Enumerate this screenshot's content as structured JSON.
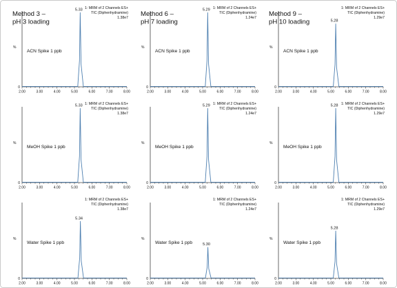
{
  "chart_data": [
    {
      "type": "line",
      "title": "Method 3 –\npH 3 loading",
      "annotation": "ACN Spike 1 ppb",
      "header": [
        "1: MRM of 2 Channels ES+",
        "TIC (Diphenhydramine)",
        "1.38e7"
      ],
      "ylabel": "%",
      "xlim": [
        2.0,
        8.0
      ],
      "ylim": [
        0,
        100
      ],
      "xticks": [
        "2.00",
        "3.00",
        "4.00",
        "5.00",
        "6.00",
        "7.00",
        "8.00"
      ],
      "peaks": [
        {
          "x": 5.33,
          "height": 100,
          "label": "5.33"
        }
      ]
    },
    {
      "type": "line",
      "title": "Method 6 –\npH 7 loading",
      "annotation": "ACN Spike 1 ppb",
      "header": [
        "1: MRM of 2 Channels ES+",
        "TIC (Diphenhydramine)",
        "1.24e7"
      ],
      "ylabel": "%",
      "xlim": [
        2.0,
        8.0
      ],
      "ylim": [
        0,
        100
      ],
      "xticks": [
        "2.00",
        "3.00",
        "4.00",
        "5.00",
        "6.00",
        "7.00",
        "8.00"
      ],
      "peaks": [
        {
          "x": 5.29,
          "height": 100,
          "label": "5.29"
        }
      ]
    },
    {
      "type": "line",
      "title": "Method 9 –\npH 10 loading",
      "annotation": "ACN Spike 1 ppb",
      "header": [
        "1: MRM of 2 Channels ES+",
        "TIC (Diphenhydramine)",
        "1.29e7"
      ],
      "ylabel": "%",
      "xlim": [
        2.0,
        8.0
      ],
      "ylim": [
        0,
        100
      ],
      "xticks": [
        "2.00",
        "3.00",
        "4.00",
        "5.00",
        "6.00",
        "7.00",
        "8.00"
      ],
      "peaks": [
        {
          "x": 5.28,
          "height": 85,
          "label": "5.28"
        }
      ]
    },
    {
      "type": "line",
      "title": "",
      "annotation": "MeOH Spike 1 ppb",
      "header": [
        "1: MRM of 2 Channels ES+",
        "TIC (Diphenhydramine)",
        "1.38e7"
      ],
      "ylabel": "%",
      "xlim": [
        2.0,
        8.0
      ],
      "ylim": [
        0,
        100
      ],
      "xticks": [
        "2.00",
        "3.00",
        "4.00",
        "5.00",
        "6.00",
        "7.00",
        "8.00"
      ],
      "peaks": [
        {
          "x": 5.33,
          "height": 100,
          "label": "5.33"
        }
      ]
    },
    {
      "type": "line",
      "title": "",
      "annotation": "MeOH Spike 1 ppb",
      "header": [
        "1: MRM of 2 Channels ES+",
        "TIC (Diphenhydramine)",
        "1.24e7"
      ],
      "ylabel": "%",
      "xlim": [
        2.0,
        8.0
      ],
      "ylim": [
        0,
        100
      ],
      "xticks": [
        "2.00",
        "3.00",
        "4.00",
        "5.00",
        "6.00",
        "7.00",
        "8.00"
      ],
      "peaks": [
        {
          "x": 5.29,
          "height": 100,
          "label": "5.29"
        }
      ]
    },
    {
      "type": "line",
      "title": "",
      "annotation": "MeOH Spike 1 ppb",
      "header": [
        "1: MRM of 2 Channels ES+",
        "TIC (Diphenhydramine)",
        "1.29e7"
      ],
      "ylabel": "%",
      "xlim": [
        2.0,
        8.0
      ],
      "ylim": [
        0,
        100
      ],
      "xticks": [
        "2.00",
        "3.00",
        "4.00",
        "5.00",
        "6.00",
        "7.00",
        "8.00"
      ],
      "peaks": [
        {
          "x": 5.28,
          "height": 100,
          "label": "5.28"
        }
      ]
    },
    {
      "type": "line",
      "title": "",
      "annotation": "Water Spike 1 ppb",
      "header": [
        "1: MRM of 2 Channels ES+",
        "TIC (Diphenhydramine)",
        "1.38e7"
      ],
      "ylabel": "%",
      "xlim": [
        2.0,
        8.0
      ],
      "ylim": [
        0,
        100
      ],
      "xticks": [
        "2.00",
        "3.00",
        "4.00",
        "5.00",
        "6.00",
        "7.00",
        "8.00"
      ],
      "peaks": [
        {
          "x": 5.34,
          "height": 77,
          "label": "5.34"
        }
      ]
    },
    {
      "type": "line",
      "title": "",
      "annotation": "Water Spike 1 ppb",
      "header": [
        "1: MRM of 2 Channels ES+",
        "TIC (Diphenhydramine)",
        "1.24e7"
      ],
      "ylabel": "%",
      "xlim": [
        2.0,
        8.0
      ],
      "ylim": [
        0,
        100
      ],
      "xticks": [
        "2.00",
        "3.00",
        "4.00",
        "5.00",
        "6.00",
        "7.00",
        "8.00"
      ],
      "peaks": [
        {
          "x": 5.3,
          "height": 42,
          "label": "5.30"
        }
      ]
    },
    {
      "type": "line",
      "title": "",
      "annotation": "Water Spike 1 ppb",
      "header": [
        "1: MRM of 2 Channels ES+",
        "TIC (Diphenhydramine)",
        "1.29e7"
      ],
      "ylabel": "%",
      "xlim": [
        2.0,
        8.0
      ],
      "ylim": [
        0,
        100
      ],
      "xticks": [
        "2.00",
        "3.00",
        "4.00",
        "5.00",
        "6.00",
        "7.00",
        "8.00"
      ],
      "peaks": [
        {
          "x": 5.28,
          "height": 64,
          "label": "5.28"
        }
      ]
    }
  ],
  "colors": {
    "trace": "#4d7fb0",
    "axis": "#444444",
    "border": "#c9c9c9",
    "text": "#111111"
  }
}
